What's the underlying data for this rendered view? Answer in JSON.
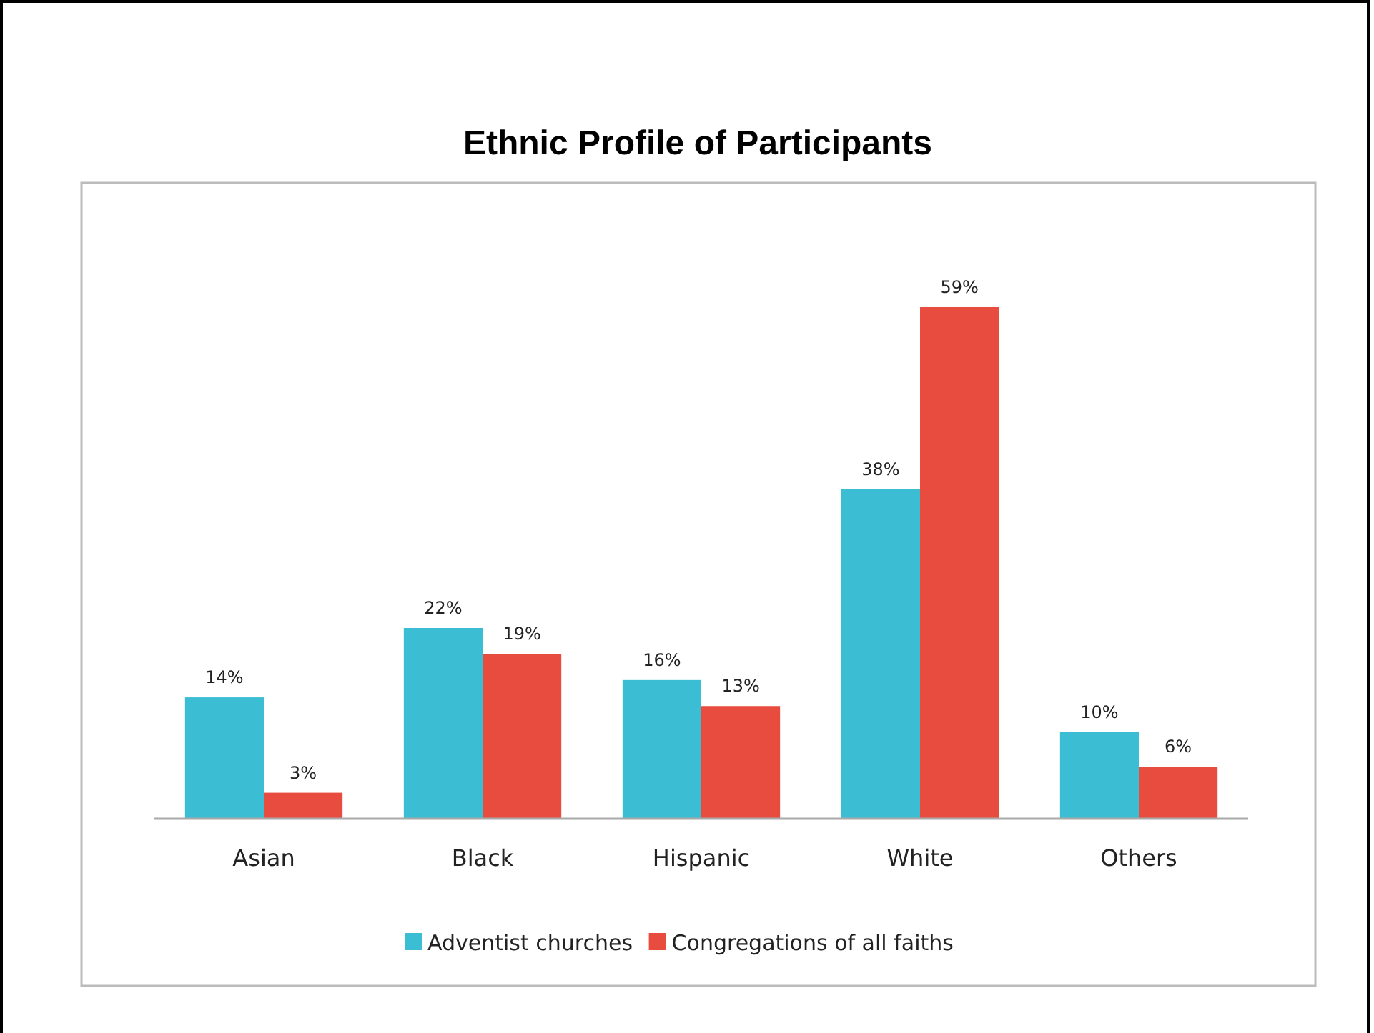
{
  "chart_data": {
    "type": "bar",
    "title": "Ethnic Profile of Participants",
    "categories": [
      "Asian",
      "Black",
      "Hispanic",
      "White",
      "Others"
    ],
    "series": [
      {
        "name": "Adventist churches",
        "color": "#3bbdd3",
        "values": [
          14,
          22,
          16,
          38,
          10
        ],
        "value_labels": [
          "14%",
          "22%",
          "16%",
          "38%",
          "10%"
        ]
      },
      {
        "name": "Congregations of all faiths",
        "color": "#e74c3f",
        "values": [
          3,
          19,
          13,
          59,
          6
        ],
        "value_labels": [
          "3%",
          "19%",
          "13%",
          "59%",
          "6%"
        ]
      }
    ],
    "legend": "bottom"
  }
}
